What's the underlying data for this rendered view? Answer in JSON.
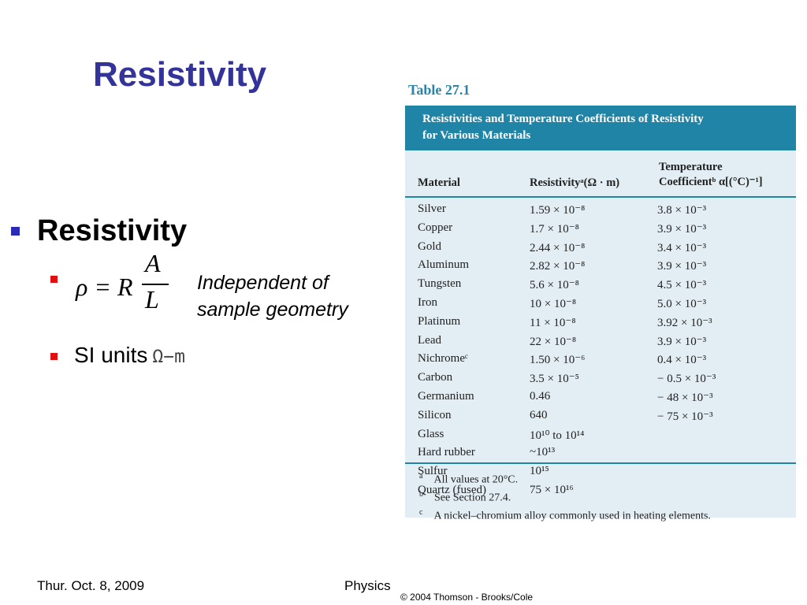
{
  "slide": {
    "title": "Resistivity",
    "bullet": "Resistivity",
    "formula": {
      "lhs": "ρ = R",
      "numerator": "A",
      "denominator": "L"
    },
    "note_line1": "Independent of",
    "note_line2": "sample geometry",
    "si_label": "SI units",
    "si_unit": "Ω−m"
  },
  "table": {
    "label": "Table 27.1",
    "caption_line1": "Resistivities and Temperature Coefficients of Resistivity",
    "caption_line2": "for Various Materials",
    "col_material": "Material",
    "col_resistivity": "Resistivityᵃ(Ω · m)",
    "col_temp_line1": "Temperature",
    "col_temp_line2": "Coefficientᵇ α[(°C)⁻¹]",
    "rows": [
      {
        "material": "Silver",
        "resistivity": "1.59 × 10⁻⁸",
        "coef": "3.8 × 10⁻³"
      },
      {
        "material": "Copper",
        "resistivity": "1.7 × 10⁻⁸",
        "coef": "3.9 × 10⁻³"
      },
      {
        "material": "Gold",
        "resistivity": "2.44 × 10⁻⁸",
        "coef": "3.4 × 10⁻³"
      },
      {
        "material": "Aluminum",
        "resistivity": "2.82 × 10⁻⁸",
        "coef": "3.9 × 10⁻³"
      },
      {
        "material": "Tungsten",
        "resistivity": "5.6 × 10⁻⁸",
        "coef": "4.5 × 10⁻³"
      },
      {
        "material": "Iron",
        "resistivity": "10 × 10⁻⁸",
        "coef": "5.0 × 10⁻³"
      },
      {
        "material": "Platinum",
        "resistivity": "11 × 10⁻⁸",
        "coef": "3.92 × 10⁻³"
      },
      {
        "material": "Lead",
        "resistivity": "22 × 10⁻⁸",
        "coef": "3.9 × 10⁻³"
      },
      {
        "material": "Nichromeᶜ",
        "resistivity": "1.50 × 10⁻⁶",
        "coef": "0.4 × 10⁻³"
      },
      {
        "material": "Carbon",
        "resistivity": "3.5 × 10⁻⁵",
        "coef": "− 0.5 × 10⁻³"
      },
      {
        "material": "Germanium",
        "resistivity": "0.46",
        "coef": "− 48 × 10⁻³"
      },
      {
        "material": "Silicon",
        "resistivity": "640",
        "coef": "− 75 × 10⁻³"
      },
      {
        "material": "Glass",
        "resistivity": "10¹⁰ to 10¹⁴",
        "coef": ""
      },
      {
        "material": "Hard rubber",
        "resistivity": "~10¹³",
        "coef": ""
      },
      {
        "material": "Sulfur",
        "resistivity": "10¹⁵",
        "coef": ""
      },
      {
        "material": "Quartz (fused)",
        "resistivity": "75 × 10¹⁶",
        "coef": ""
      }
    ],
    "footnotes": [
      {
        "mark": "a",
        "text": "All values at 20°C."
      },
      {
        "mark": "b",
        "text": "See Section 27.4."
      },
      {
        "mark": "c",
        "text": "A nickel–chromium alloy commonly used in heating elements."
      }
    ]
  },
  "footer": {
    "date": "Thur. Oct. 8, 2009",
    "course": "Physics",
    "copyright": "© 2004 Thomson - Brooks/Cole"
  },
  "colors": {
    "title": "#333399",
    "table_header": "#1f84a6",
    "table_body": "#e3eef4",
    "bullet_level1": "#2a2ab8",
    "bullet_level2": "#e01010"
  }
}
